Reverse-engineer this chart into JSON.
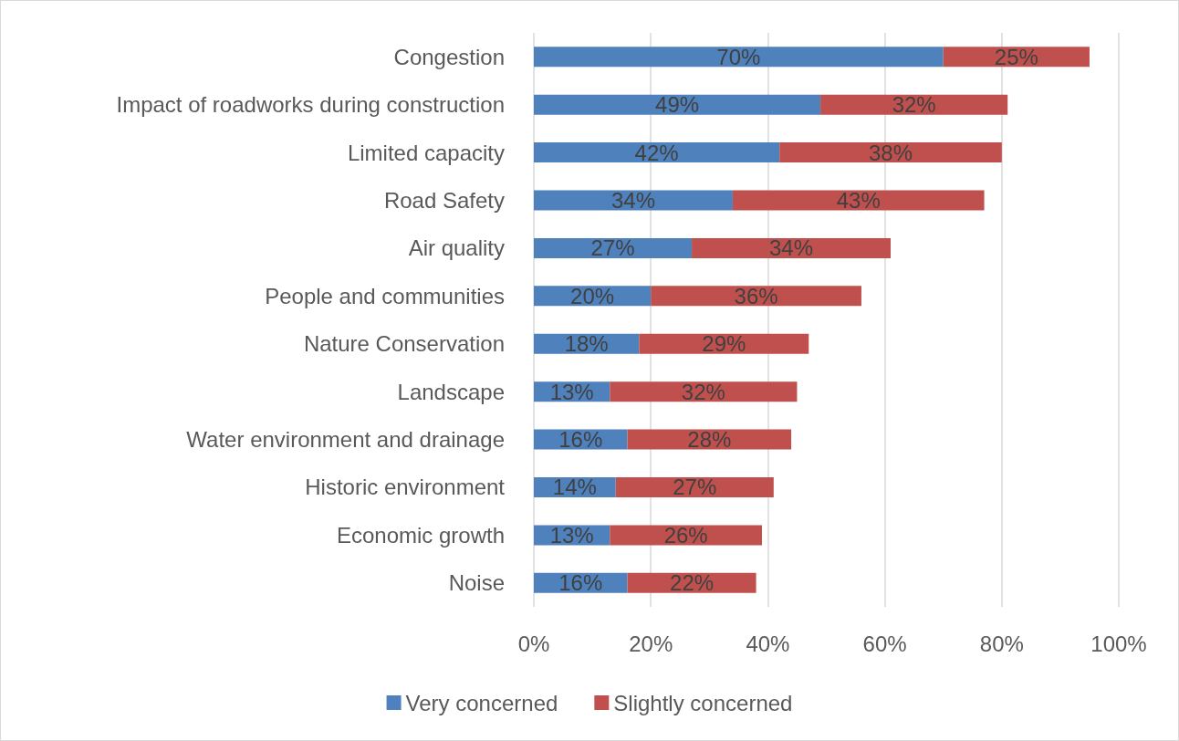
{
  "chart_data": {
    "type": "bar",
    "orientation": "horizontal",
    "stacked": true,
    "categories": [
      "Congestion",
      "Impact of roadworks during construction",
      "Limited capacity",
      "Road Safety",
      "Air quality",
      "People and communities",
      "Nature Conservation",
      "Landscape",
      "Water environment and drainage",
      "Historic environment",
      "Economic growth",
      "Noise"
    ],
    "series": [
      {
        "name": "Very concerned",
        "color": "#4f81bd",
        "values": [
          70,
          49,
          42,
          34,
          27,
          20,
          18,
          13,
          16,
          14,
          13,
          16
        ],
        "value_labels": [
          "70%",
          "49%",
          "42%",
          "34%",
          "27%",
          "20%",
          "18%",
          "13%",
          "16%",
          "14%",
          "13%",
          "16%"
        ]
      },
      {
        "name": "Slightly concerned",
        "color": "#c0504d",
        "values": [
          25,
          32,
          38,
          43,
          34,
          36,
          29,
          32,
          28,
          27,
          26,
          22
        ],
        "value_labels": [
          "25%",
          "32%",
          "38%",
          "43%",
          "34%",
          "36%",
          "29%",
          "32%",
          "28%",
          "27%",
          "26%",
          "22%"
        ]
      }
    ],
    "xlim": [
      0,
      100
    ],
    "xticks": [
      {
        "value": 0,
        "label": "0%"
      },
      {
        "value": 20,
        "label": "20%"
      },
      {
        "value": 40,
        "label": "40%"
      },
      {
        "value": 60,
        "label": "60%"
      },
      {
        "value": 80,
        "label": "80%"
      },
      {
        "value": 100,
        "label": "100%"
      }
    ],
    "grid": "x",
    "legend": "bottom"
  }
}
